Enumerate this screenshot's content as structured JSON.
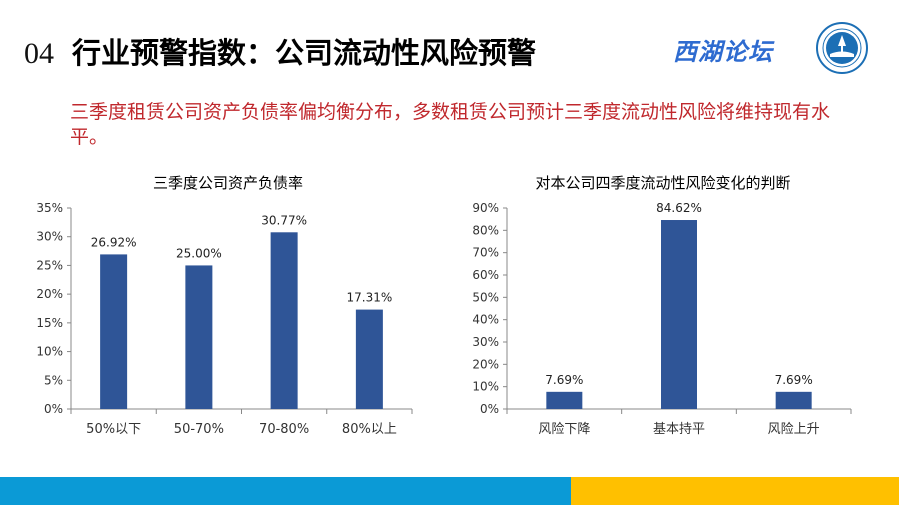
{
  "header": {
    "number": "04",
    "title": "行业预警指数：公司流动性风险预警",
    "brand": "西湖论坛"
  },
  "subtitle": "三季度租赁公司资产负债率偏均衡分布，多数租赁公司预计三季度流动性风险将维持现有水平。",
  "colors": {
    "bar": "#2f5597",
    "subtitle": "#c0282d",
    "footer_blue": "#0b9ad6",
    "footer_yellow": "#ffc000",
    "brand": "#2e6bd0",
    "logo": "#1c6fb5"
  },
  "icons": {
    "logo": "xihu-forum-logo-emblem"
  },
  "chart_data": [
    {
      "type": "bar",
      "title": "三季度公司资产负债率",
      "categories": [
        "50%以下",
        "50-70%",
        "70-80%",
        "80%以上"
      ],
      "values": [
        26.92,
        25.0,
        30.77,
        17.31
      ],
      "data_labels": [
        "26.92%",
        "25.00%",
        "30.77%",
        "17.31%"
      ],
      "ylim": [
        0,
        35
      ],
      "yticks": [
        "0%",
        "5%",
        "10%",
        "15%",
        "20%",
        "25%",
        "30%",
        "35%"
      ],
      "grid": false,
      "legend": "none"
    },
    {
      "type": "bar",
      "title": "对本公司四季度流动性风险变化的判断",
      "categories": [
        "风险下降",
        "基本持平",
        "风险上升"
      ],
      "values": [
        7.69,
        84.62,
        7.69
      ],
      "data_labels": [
        "7.69%",
        "84.62%",
        "7.69%"
      ],
      "ylim": [
        0,
        90
      ],
      "yticks": [
        "0%",
        "10%",
        "20%",
        "30%",
        "40%",
        "50%",
        "60%",
        "70%",
        "80%",
        "90%"
      ],
      "grid": false,
      "legend": "none"
    }
  ]
}
